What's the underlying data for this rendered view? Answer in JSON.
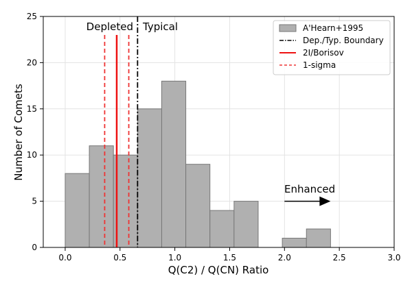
{
  "chart_data": {
    "type": "bar",
    "xlabel": "Q(C2) / Q(CN) Ratio",
    "ylabel": "Number of Comets",
    "xlim": [
      -0.2,
      3.0
    ],
    "ylim": [
      0,
      25
    ],
    "xticks": [
      "0.0",
      "0.5",
      "1.0",
      "1.5",
      "2.0",
      "2.5",
      "3.0"
    ],
    "yticks": [
      "0",
      "5",
      "10",
      "15",
      "20",
      "25"
    ],
    "grid": true,
    "legend_position": "top-right",
    "histogram": {
      "name": "A'Hearn+1995",
      "color": "#b0b0b0",
      "edge_color": "#777777",
      "bins": [
        {
          "x0": 0.0,
          "x1": 0.22,
          "count": 8
        },
        {
          "x0": 0.22,
          "x1": 0.44,
          "count": 11
        },
        {
          "x0": 0.44,
          "x1": 0.66,
          "count": 10
        },
        {
          "x0": 0.66,
          "x1": 0.88,
          "count": 15
        },
        {
          "x0": 0.88,
          "x1": 1.1,
          "count": 18
        },
        {
          "x0": 1.1,
          "x1": 1.32,
          "count": 9
        },
        {
          "x0": 1.32,
          "x1": 1.54,
          "count": 4
        },
        {
          "x0": 1.54,
          "x1": 1.76,
          "count": 5
        },
        {
          "x0": 1.76,
          "x1": 1.98,
          "count": 0
        },
        {
          "x0": 1.98,
          "x1": 2.2,
          "count": 1
        },
        {
          "x0": 2.2,
          "x1": 2.42,
          "count": 2
        }
      ]
    },
    "lines": [
      {
        "name": "Dep./Typ. Boundary",
        "x": 0.66,
        "color": "#000000",
        "style": "dashdot"
      },
      {
        "name": "2I/Borisov",
        "x": 0.47,
        "color": "#ee1111",
        "style": "solid"
      },
      {
        "name": "1-sigma",
        "x": 0.36,
        "color": "#ee3333",
        "style": "dashed"
      },
      {
        "x": 0.58,
        "color": "#ee3333",
        "style": "dashed"
      }
    ],
    "annotations": {
      "depleted": "Depleted",
      "typical": "Typical",
      "enhanced": "Enhanced"
    },
    "enhanced_arrow": {
      "x_start": 2.0,
      "x_end": 2.42,
      "y": 5
    }
  }
}
